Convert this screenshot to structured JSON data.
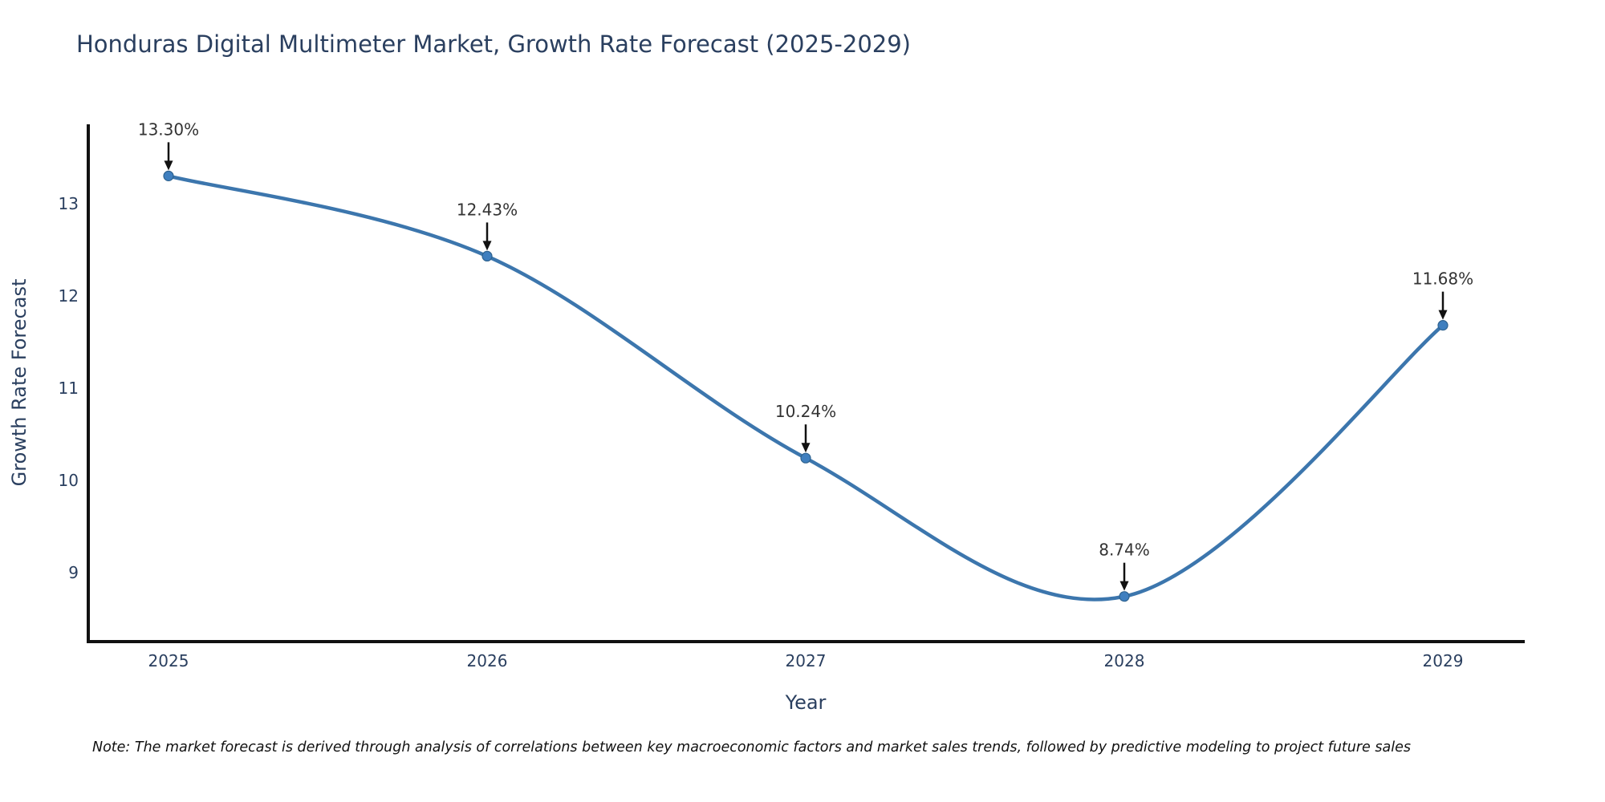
{
  "page": {
    "background": "#ffffff"
  },
  "chart_data": {
    "type": "line",
    "title": "Honduras Digital Multimeter Market, Growth Rate Forecast (2025-2029)",
    "xlabel": "Year",
    "ylabel": "Growth Rate Forecast",
    "categories": [
      2025,
      2026,
      2027,
      2028,
      2029
    ],
    "series": [
      {
        "name": "Growth Rate Forecast",
        "values": [
          13.3,
          12.43,
          10.24,
          8.74,
          11.68
        ]
      }
    ],
    "point_labels": [
      "13.30%",
      "12.43%",
      "10.24%",
      "8.74%",
      "11.68%"
    ],
    "y_ticks": [
      9,
      10,
      11,
      12,
      13
    ],
    "ylim": [
      8.25,
      13.86
    ],
    "grid": false,
    "legend": false,
    "line_shape": "spline",
    "line_color": "#3c76ad",
    "marker_color": "#3f7fbf",
    "marker_edge_color": "#2e628f",
    "axis_color": "#111111",
    "tick_label_color": "#2a3f5f",
    "annotation_color": "#333333",
    "arrow_color": "#111111"
  },
  "note": {
    "text": "Note: The market forecast is derived through analysis of correlations between key macroeconomic factors and market sales trends, followed by predictive modeling to project future sales"
  }
}
